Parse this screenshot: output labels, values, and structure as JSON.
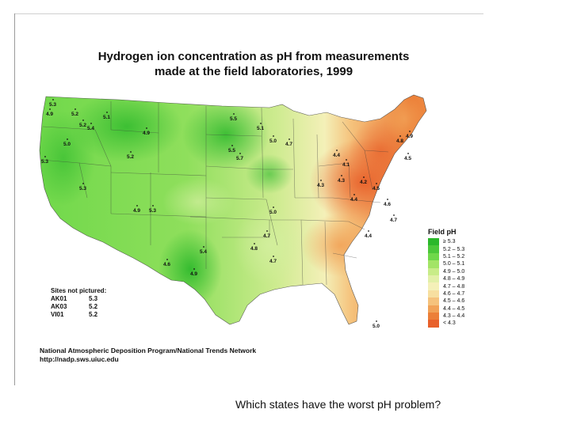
{
  "title": {
    "line1": "Hydrogen ion concentration as pH from measurements",
    "line2": "made at the field laboratories, 1999"
  },
  "legend": {
    "title": "Field pH",
    "items": [
      {
        "label": "≥ 5.3",
        "color": "#2bb82b"
      },
      {
        "label": "5.2 – 5.3",
        "color": "#4cc83a"
      },
      {
        "label": "5.1 – 5.2",
        "color": "#6fd84a"
      },
      {
        "label": "5.0 – 5.1",
        "color": "#a3e466"
      },
      {
        "label": "4.9 – 5.0",
        "color": "#c8ec88"
      },
      {
        "label": "4.8 – 4.9",
        "color": "#e2f0a8"
      },
      {
        "label": "4.7 – 4.8",
        "color": "#f4f0b8"
      },
      {
        "label": "4.6 – 4.7",
        "color": "#f7dfa0"
      },
      {
        "label": "4.5 – 4.6",
        "color": "#f5c27c"
      },
      {
        "label": "4.4 – 4.5",
        "color": "#f1a257"
      },
      {
        "label": "4.3 – 4.4",
        "color": "#ec7f38"
      },
      {
        "label": "< 4.3",
        "color": "#e8602a"
      }
    ]
  },
  "sites_not_pictured": {
    "title": "Sites not pictured:",
    "rows": [
      {
        "code": "AK01",
        "value": "5.3"
      },
      {
        "code": "AK03",
        "value": "5.2"
      },
      {
        "code": "VI01",
        "value": "5.2"
      }
    ]
  },
  "attribution": {
    "line1": "National Atmospheric Deposition Program/National Trends Network",
    "line2": "http://nadp.sws.uiuc.edu"
  },
  "question": "Which states have the worst pH problem?",
  "site_values": [
    "5.3",
    "4.9",
    "5.2",
    "5.4",
    "5.0",
    "5.3",
    "5.2",
    "5.3",
    "5.1",
    "4.9",
    "5.2",
    "4.9",
    "5.3",
    "5.5",
    "5.5",
    "5.7",
    "5.1",
    "5.0",
    "4.7",
    "4.4",
    "4.3",
    "4.2",
    "4.5",
    "4.6",
    "4.7",
    "4.8",
    "4.9",
    "4.5",
    "4.4",
    "4.1",
    "4.3",
    "5.0",
    "4.7",
    "5.4",
    "4.6",
    "4.9",
    "4.8",
    "4.4",
    "5.0",
    "4.7"
  ]
}
